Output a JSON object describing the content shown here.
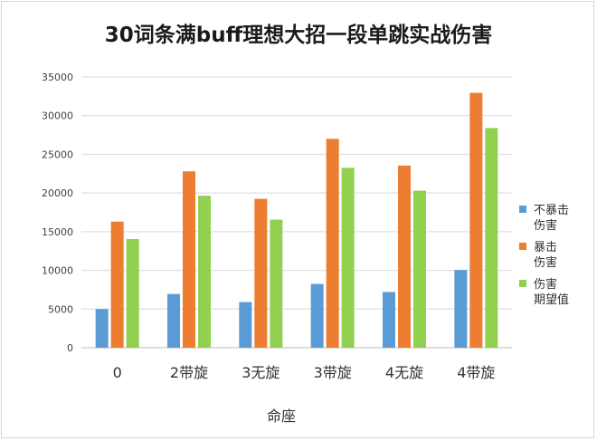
{
  "chart_data": {
    "type": "bar",
    "title": "30词条满buff理想大招一段单跳实战伤害",
    "xlabel": "命座",
    "ylabel": "",
    "categories": [
      "0",
      "2带旋",
      "3无旋",
      "3带旋",
      "4无旋",
      "4带旋"
    ],
    "ylim": [
      0,
      35000
    ],
    "yticks": [
      0,
      5000,
      10000,
      15000,
      20000,
      25000,
      30000,
      35000
    ],
    "grid": true,
    "legend_position": "right",
    "series": [
      {
        "name": "不暴击伤害",
        "legend_lines": [
          "不暴击",
          "伤害"
        ],
        "color": "#5b9bd5",
        "values": [
          5000,
          6950,
          5900,
          8250,
          7200,
          10050
        ]
      },
      {
        "name": "暴击伤害",
        "legend_lines": [
          "暴击",
          "伤害"
        ],
        "color": "#ed7d31",
        "values": [
          16300,
          22800,
          19250,
          27000,
          23550,
          32950
        ]
      },
      {
        "name": "伤害期望值",
        "legend_lines": [
          "伤害",
          "期望值"
        ],
        "color": "#92d050",
        "values": [
          14050,
          19650,
          16550,
          23250,
          20300,
          28400
        ]
      }
    ]
  }
}
